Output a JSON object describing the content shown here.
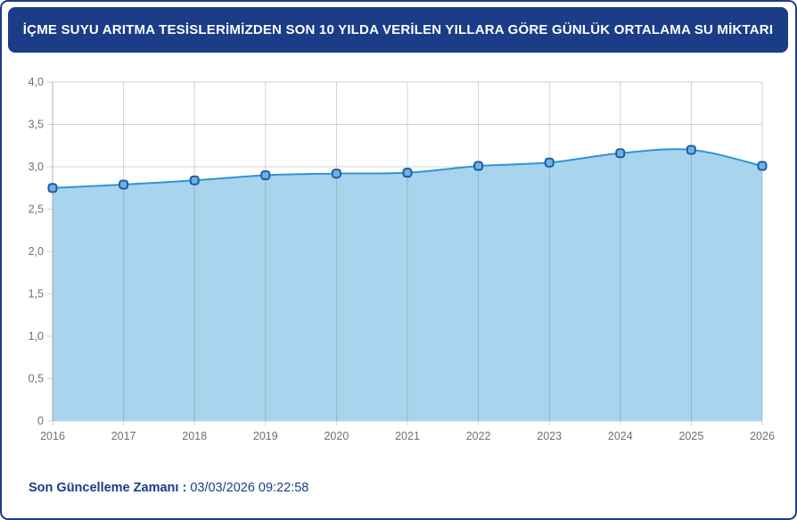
{
  "header": {
    "title": "İÇME SUYU ARITMA TESİSLERİMİZDEN SON 10 YILDA VERİLEN YILLARA GÖRE GÜNLÜK ORTALAMA SU MİKTARI",
    "bg_color": "#1b3c87",
    "text_color": "#ffffff"
  },
  "footer": {
    "label": "Son Güncelleme Zamanı",
    "separator": " : ",
    "value": "03/03/2026 09:22:58"
  },
  "chart_data": {
    "type": "area",
    "title": "İÇME SUYU ARITMA TESİSLERİMİZDEN SON 10 YILDA VERİLEN YILLARA GÖRE GÜNLÜK ORTALAMA SU MİKTARI",
    "categories": [
      "2016",
      "2017",
      "2018",
      "2019",
      "2020",
      "2021",
      "2022",
      "2023",
      "2024",
      "2025",
      "2026"
    ],
    "values": [
      2.75,
      2.79,
      2.84,
      2.9,
      2.92,
      2.93,
      3.01,
      3.05,
      3.16,
      3.2,
      3.01
    ],
    "xlabel": "",
    "ylabel": "",
    "ylim": [
      0,
      4
    ],
    "y_tick_step": 0.5,
    "y_tick_labels": [
      "0",
      "0,5",
      "1,0",
      "1,5",
      "2,0",
      "2,5",
      "3,0",
      "3,5",
      "4,0"
    ],
    "grid": true,
    "legend": "none",
    "colors": {
      "line": "#2e95d2",
      "fill": "#a9d4ee",
      "marker_fill": "#72b2de",
      "marker_stroke": "#1e5ca6",
      "grid": "#d4d4d4",
      "grid_over_fill": "rgba(110,110,110,0.30)",
      "axis_text": "#707070"
    }
  }
}
